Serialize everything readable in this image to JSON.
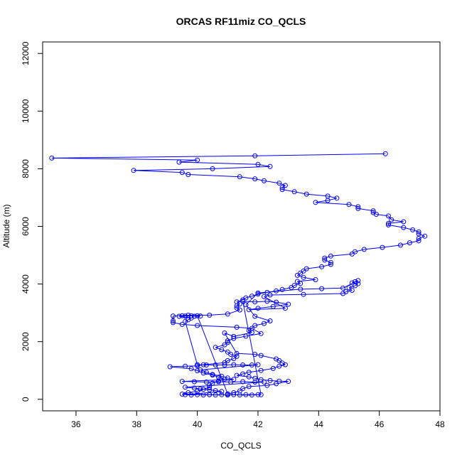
{
  "chart_data": {
    "type": "scatter",
    "title": "ORCAS RF11miz CO_QCLS",
    "xlabel": "CO_QCLS",
    "ylabel": "Altitude (m)",
    "xlim": [
      34.9,
      48.0
    ],
    "ylim": [
      -400,
      12400
    ],
    "xticks": [
      36,
      38,
      40,
      42,
      44,
      46,
      48
    ],
    "yticks": [
      0,
      2000,
      4000,
      6000,
      8000,
      10000,
      12000
    ],
    "grid": false,
    "marker": "open-circle",
    "connected": true,
    "color": "#0000ff",
    "series": [
      {
        "points": [
          [
            46.2,
            8520
          ],
          [
            41.9,
            8450
          ],
          [
            35.2,
            8370
          ],
          [
            40.0,
            8300
          ],
          [
            39.4,
            8230
          ],
          [
            42.0,
            8150
          ],
          [
            42.4,
            8080
          ],
          [
            40.5,
            8000
          ],
          [
            37.9,
            7940
          ],
          [
            39.5,
            7870
          ],
          [
            39.7,
            7800
          ],
          [
            41.4,
            7720
          ],
          [
            41.9,
            7650
          ],
          [
            42.2,
            7580
          ],
          [
            42.7,
            7500
          ],
          [
            42.9,
            7420
          ],
          [
            42.8,
            7350
          ],
          [
            42.8,
            7280
          ],
          [
            43.2,
            7200
          ],
          [
            43.6,
            7120
          ],
          [
            44.3,
            7050
          ],
          [
            44.6,
            6980
          ],
          [
            44.3,
            6900
          ],
          [
            43.9,
            6830
          ],
          [
            45.0,
            6760
          ],
          [
            45.3,
            6680
          ],
          [
            45.3,
            6620
          ],
          [
            45.8,
            6540
          ],
          [
            45.8,
            6480
          ],
          [
            45.9,
            6420
          ],
          [
            46.3,
            6360
          ],
          [
            46.4,
            6230
          ],
          [
            46.8,
            6160
          ],
          [
            46.3,
            6100
          ],
          [
            46.3,
            6050
          ],
          [
            46.8,
            5960
          ],
          [
            47.1,
            5880
          ],
          [
            47.3,
            5810
          ],
          [
            47.3,
            5740
          ],
          [
            47.5,
            5660
          ],
          [
            47.3,
            5580
          ],
          [
            47.3,
            5500
          ],
          [
            47.0,
            5430
          ],
          [
            46.7,
            5350
          ],
          [
            46.1,
            5270
          ],
          [
            45.5,
            5200
          ],
          [
            45.2,
            5120
          ],
          [
            45.1,
            5040
          ],
          [
            44.4,
            4970
          ],
          [
            44.2,
            4900
          ],
          [
            44.2,
            4830
          ],
          [
            44.4,
            4750
          ],
          [
            44.4,
            4680
          ],
          [
            44.1,
            4600
          ],
          [
            43.6,
            4530
          ],
          [
            43.5,
            4450
          ],
          [
            43.4,
            4380
          ],
          [
            43.3,
            4300
          ],
          [
            43.5,
            4230
          ],
          [
            43.9,
            4150
          ],
          [
            43.3,
            4090
          ],
          [
            43.4,
            4020
          ],
          [
            43.2,
            3950
          ],
          [
            43.1,
            3880
          ],
          [
            42.8,
            3810
          ],
          [
            42.6,
            3760
          ],
          [
            42.3,
            3710
          ],
          [
            42.0,
            3650
          ],
          [
            41.8,
            3580
          ],
          [
            41.6,
            3520
          ],
          [
            41.5,
            3450
          ],
          [
            41.3,
            3380
          ],
          [
            41.4,
            3310
          ],
          [
            41.3,
            3240
          ],
          [
            41.3,
            3170
          ],
          [
            41.4,
            3100
          ],
          [
            41.0,
            2960
          ],
          [
            40.4,
            2920
          ],
          [
            39.7,
            2920
          ],
          [
            39.2,
            2890
          ],
          [
            39.2,
            2720
          ],
          [
            39.2,
            2660
          ],
          [
            39.5,
            2600
          ],
          [
            40.0,
            2560
          ],
          [
            41.3,
            2500
          ],
          [
            41.8,
            2460
          ],
          [
            42.1,
            2280
          ],
          [
            41.6,
            2190
          ],
          [
            41.2,
            2110
          ],
          [
            41.0,
            2030
          ],
          [
            41.0,
            1970
          ],
          [
            40.9,
            1890
          ],
          [
            40.6,
            1800
          ],
          [
            40.8,
            1720
          ],
          [
            41.0,
            1640
          ],
          [
            41.1,
            1560
          ],
          [
            41.3,
            1490
          ],
          [
            41.2,
            1410
          ],
          [
            41.0,
            1340
          ],
          [
            40.9,
            1270
          ],
          [
            40.2,
            1200
          ],
          [
            40.0,
            1160
          ],
          [
            39.6,
            1150
          ],
          [
            39.1,
            1130
          ],
          [
            39.8,
            1060
          ],
          [
            40.0,
            990
          ],
          [
            40.2,
            910
          ],
          [
            40.5,
            840
          ],
          [
            40.7,
            770
          ],
          [
            40.9,
            700
          ],
          [
            40.7,
            640
          ],
          [
            40.5,
            560
          ],
          [
            40.4,
            490
          ],
          [
            40.4,
            420
          ],
          [
            40.2,
            350
          ],
          [
            40.0,
            280
          ],
          [
            39.7,
            230
          ],
          [
            39.5,
            180
          ],
          [
            40.4,
            160
          ],
          [
            41.0,
            155
          ],
          [
            41.6,
            160
          ],
          [
            42.1,
            160
          ],
          [
            41.5,
            3400
          ],
          [
            41.9,
            3380
          ],
          [
            42.3,
            3400
          ],
          [
            42.6,
            3370
          ],
          [
            43.0,
            3300
          ],
          [
            42.5,
            3220
          ],
          [
            42.0,
            3160
          ],
          [
            41.7,
            3110
          ],
          [
            42.9,
            3160
          ],
          [
            42.2,
            3560
          ],
          [
            42.4,
            3620
          ],
          [
            43.5,
            3640
          ],
          [
            44.8,
            3670
          ],
          [
            44.9,
            3730
          ],
          [
            45.1,
            3780
          ],
          [
            45.0,
            3870
          ],
          [
            45.2,
            3940
          ],
          [
            45.3,
            4010
          ],
          [
            45.1,
            4040
          ],
          [
            45.2,
            4080
          ],
          [
            45.3,
            4120
          ],
          [
            44.8,
            3860
          ],
          [
            44.1,
            3840
          ],
          [
            43.4,
            3820
          ],
          [
            42.0,
            3690
          ],
          [
            41.6,
            3280
          ],
          [
            41.9,
            2880
          ],
          [
            42.4,
            2720
          ],
          [
            42.2,
            2630
          ],
          [
            41.9,
            2560
          ],
          [
            41.7,
            2390
          ],
          [
            41.8,
            2320
          ],
          [
            41.2,
            2180
          ],
          [
            40.9,
            2300
          ],
          [
            41.3,
            1590
          ],
          [
            41.9,
            1560
          ],
          [
            42.1,
            1520
          ],
          [
            42.6,
            1400
          ],
          [
            42.7,
            1340
          ],
          [
            42.8,
            1260
          ],
          [
            42.9,
            1200
          ],
          [
            42.7,
            1150
          ],
          [
            42.5,
            1070
          ],
          [
            42.1,
            1000
          ],
          [
            41.7,
            940
          ],
          [
            41.5,
            880
          ],
          [
            41.3,
            830
          ],
          [
            41.7,
            780
          ],
          [
            41.9,
            730
          ],
          [
            42.1,
            680
          ],
          [
            42.4,
            650
          ],
          [
            42.7,
            630
          ],
          [
            43.0,
            620
          ],
          [
            42.6,
            540
          ],
          [
            42.3,
            480
          ],
          [
            41.7,
            440
          ],
          [
            41.5,
            370
          ],
          [
            41.4,
            290
          ],
          [
            41.2,
            230
          ],
          [
            41.0,
            190
          ],
          [
            40.0,
            2900
          ],
          [
            40.1,
            2890
          ],
          [
            39.9,
            2880
          ],
          [
            39.8,
            2900
          ],
          [
            39.6,
            2890
          ],
          [
            39.5,
            2900
          ],
          [
            39.4,
            2880
          ],
          [
            39.8,
            2820
          ],
          [
            39.7,
            2760
          ],
          [
            39.6,
            2700
          ],
          [
            40.0,
            1200
          ],
          [
            40.3,
            1190
          ],
          [
            40.6,
            1190
          ],
          [
            40.9,
            1190
          ],
          [
            41.2,
            1200
          ],
          [
            41.5,
            1190
          ],
          [
            41.8,
            1190
          ],
          [
            42.0,
            1200
          ],
          [
            40.1,
            1020
          ],
          [
            40.3,
            940
          ],
          [
            40.5,
            860
          ],
          [
            40.8,
            800
          ],
          [
            41.0,
            740
          ],
          [
            41.2,
            690
          ],
          [
            39.5,
            620
          ],
          [
            39.9,
            610
          ],
          [
            40.3,
            600
          ],
          [
            40.7,
            610
          ],
          [
            41.1,
            600
          ],
          [
            41.5,
            610
          ],
          [
            41.9,
            600
          ],
          [
            42.2,
            600
          ],
          [
            39.6,
            420
          ],
          [
            39.9,
            390
          ],
          [
            40.1,
            360
          ],
          [
            40.4,
            330
          ],
          [
            40.6,
            300
          ],
          [
            40.8,
            270
          ],
          [
            39.6,
            160
          ],
          [
            39.8,
            150
          ],
          [
            40.0,
            160
          ],
          [
            40.2,
            150
          ],
          [
            40.4,
            160
          ],
          [
            40.6,
            150
          ],
          [
            40.8,
            160
          ],
          [
            41.0,
            150
          ],
          [
            41.2,
            160
          ],
          [
            41.4,
            150
          ],
          [
            41.8,
            150
          ],
          [
            42.0,
            160
          ]
        ]
      }
    ]
  }
}
